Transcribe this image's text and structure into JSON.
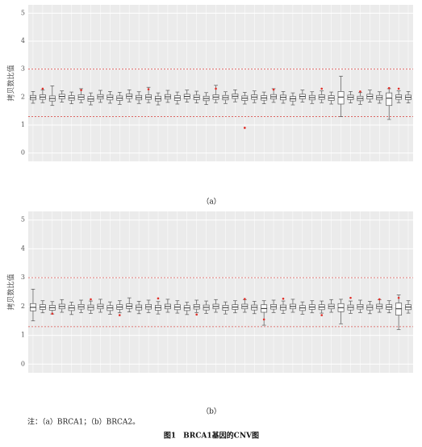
{
  "chart_data": [
    {
      "type": "box",
      "caption": "（a）",
      "ylabel": "拷贝数比值",
      "categories": [
        null,
        null,
        null,
        null,
        null,
        null,
        null,
        null,
        null,
        null,
        null,
        null,
        null,
        null,
        null,
        null,
        null,
        null,
        null,
        null,
        null,
        null,
        null,
        null,
        null,
        null,
        null,
        null,
        null,
        null,
        null,
        null,
        null,
        null,
        null,
        null,
        null,
        null,
        null,
        null
      ],
      "low": [
        1.78,
        1.8,
        1.7,
        1.82,
        1.76,
        1.8,
        1.72,
        1.81,
        1.78,
        1.74,
        1.83,
        1.77,
        1.8,
        1.72,
        1.81,
        1.75,
        1.82,
        1.79,
        1.73,
        1.8,
        1.77,
        1.83,
        1.75,
        1.8,
        1.76,
        1.81,
        1.78,
        1.72,
        1.82,
        1.77,
        1.8,
        1.75,
        1.3,
        1.79,
        1.74,
        1.82,
        1.78,
        1.2,
        1.8,
        1.79
      ],
      "q1": [
        1.9,
        1.92,
        1.86,
        1.94,
        1.89,
        1.91,
        1.85,
        1.93,
        1.9,
        1.88,
        1.95,
        1.9,
        1.92,
        1.86,
        1.93,
        1.88,
        1.94,
        1.91,
        1.87,
        1.92,
        1.9,
        1.95,
        1.88,
        1.92,
        1.89,
        1.93,
        1.9,
        1.86,
        1.94,
        1.9,
        1.92,
        1.88,
        1.75,
        1.91,
        1.87,
        1.93,
        1.9,
        1.7,
        1.92,
        1.91
      ],
      "median": [
        1.98,
        2.0,
        1.95,
        2.02,
        1.97,
        2.0,
        1.93,
        2.01,
        1.99,
        1.96,
        2.03,
        1.98,
        2.0,
        1.94,
        2.01,
        1.97,
        2.02,
        1.99,
        1.95,
        2.0,
        1.98,
        2.03,
        1.96,
        2.0,
        1.97,
        2.01,
        1.99,
        1.94,
        2.02,
        1.98,
        2.0,
        1.97,
        2.0,
        1.99,
        1.95,
        2.02,
        1.98,
        1.96,
        2.0,
        1.99
      ],
      "q3": [
        2.06,
        2.08,
        2.04,
        2.1,
        2.05,
        2.08,
        2.02,
        2.09,
        2.07,
        2.04,
        2.11,
        2.06,
        2.08,
        2.03,
        2.09,
        2.05,
        2.1,
        2.07,
        2.03,
        2.08,
        2.06,
        2.11,
        2.04,
        2.08,
        2.05,
        2.09,
        2.07,
        2.02,
        2.1,
        2.06,
        2.08,
        2.05,
        2.2,
        2.07,
        2.03,
        2.1,
        2.06,
        2.15,
        2.08,
        2.07
      ],
      "high": [
        2.2,
        2.25,
        2.4,
        2.22,
        2.18,
        2.3,
        2.15,
        2.24,
        2.2,
        2.17,
        2.26,
        2.19,
        2.35,
        2.15,
        2.24,
        2.18,
        2.25,
        2.21,
        2.16,
        2.42,
        2.19,
        2.26,
        2.17,
        2.22,
        2.18,
        2.3,
        2.2,
        2.15,
        2.25,
        2.19,
        2.22,
        2.18,
        2.75,
        2.2,
        2.16,
        2.25,
        2.19,
        2.3,
        2.22,
        2.2
      ],
      "outliers": {
        "x": [
          1,
          5,
          12,
          19,
          22,
          22,
          25,
          30,
          34,
          37,
          38
        ],
        "y": [
          2.3,
          2.25,
          2.28,
          2.3,
          0.9,
          0.9,
          2.27,
          2.3,
          2.2,
          2.32,
          2.3
        ]
      },
      "ref_lines": [
        3,
        1.3
      ],
      "ylim": [
        -0.3,
        5.3
      ],
      "yticks": [
        0,
        1,
        2,
        3,
        4,
        5
      ],
      "box_color": "#555555",
      "outlier_color": "#e0302a",
      "ref_color": "#d9534f",
      "panel_color": "#ebebeb"
    },
    {
      "type": "box",
      "caption": "（b）",
      "ylabel": "拷贝数比值",
      "categories": [
        null,
        null,
        null,
        null,
        null,
        null,
        null,
        null,
        null,
        null,
        null,
        null,
        null,
        null,
        null,
        null,
        null,
        null,
        null,
        null,
        null,
        null,
        null,
        null,
        null,
        null,
        null,
        null,
        null,
        null,
        null,
        null,
        null,
        null,
        null,
        null,
        null,
        null,
        null,
        null
      ],
      "low": [
        1.5,
        1.78,
        1.74,
        1.8,
        1.72,
        1.79,
        1.76,
        1.8,
        1.73,
        1.78,
        1.81,
        1.75,
        1.79,
        1.74,
        1.8,
        1.77,
        1.72,
        1.79,
        1.76,
        1.8,
        1.74,
        1.78,
        1.8,
        1.75,
        1.35,
        1.79,
        1.76,
        1.8,
        1.73,
        1.78,
        1.77,
        1.8,
        1.4,
        1.76,
        1.79,
        1.75,
        1.8,
        1.78,
        1.2,
        1.77
      ],
      "q1": [
        1.85,
        1.9,
        1.87,
        1.92,
        1.86,
        1.91,
        1.88,
        1.92,
        1.86,
        1.9,
        1.93,
        1.88,
        1.91,
        1.87,
        1.92,
        1.89,
        1.86,
        1.91,
        1.88,
        1.92,
        1.87,
        1.9,
        1.92,
        1.88,
        1.8,
        1.91,
        1.88,
        1.92,
        1.86,
        1.9,
        1.89,
        1.92,
        1.82,
        1.88,
        1.91,
        1.88,
        1.92,
        1.9,
        1.7,
        1.89
      ],
      "median": [
        1.97,
        1.98,
        1.96,
        2.0,
        1.95,
        1.99,
        1.97,
        2.0,
        1.95,
        1.98,
        2.01,
        1.97,
        1.99,
        1.96,
        2.0,
        1.98,
        1.95,
        1.99,
        1.97,
        2.0,
        1.96,
        1.98,
        2.0,
        1.97,
        1.93,
        1.99,
        1.97,
        2.0,
        1.95,
        1.98,
        1.98,
        2.0,
        1.96,
        1.97,
        1.99,
        1.97,
        2.0,
        1.98,
        1.92,
        1.98
      ],
      "q3": [
        2.1,
        2.06,
        2.04,
        2.08,
        2.03,
        2.07,
        2.05,
        2.08,
        2.03,
        2.06,
        2.09,
        2.05,
        2.07,
        2.04,
        2.08,
        2.06,
        2.03,
        2.07,
        2.05,
        2.08,
        2.04,
        2.06,
        2.08,
        2.05,
        2.06,
        2.07,
        2.05,
        2.08,
        2.03,
        2.06,
        2.06,
        2.08,
        2.1,
        2.05,
        2.07,
        2.05,
        2.08,
        2.06,
        2.12,
        2.06
      ],
      "high": [
        2.6,
        2.2,
        2.17,
        2.24,
        2.15,
        2.22,
        2.19,
        2.25,
        2.16,
        2.2,
        2.3,
        2.18,
        2.22,
        2.17,
        2.25,
        2.2,
        2.15,
        2.22,
        2.19,
        2.24,
        2.16,
        2.2,
        2.24,
        2.18,
        2.2,
        2.22,
        2.19,
        2.25,
        2.16,
        2.2,
        2.19,
        2.24,
        2.25,
        2.19,
        2.22,
        2.18,
        2.24,
        2.2,
        2.4,
        2.2
      ],
      "outliers": {
        "x": [
          2,
          6,
          9,
          13,
          17,
          22,
          24,
          26,
          30,
          33,
          36,
          38
        ],
        "y": [
          1.75,
          2.25,
          1.7,
          2.28,
          1.72,
          2.26,
          1.55,
          2.27,
          1.7,
          2.3,
          2.25,
          2.3
        ]
      },
      "ref_lines": [
        3,
        1.3
      ],
      "ylim": [
        -0.3,
        5.3
      ],
      "yticks": [
        0,
        1,
        2,
        3,
        4,
        5
      ],
      "box_color": "#555555",
      "outlier_color": "#e0302a",
      "ref_color": "#d9534f",
      "panel_color": "#ebebeb"
    }
  ],
  "note": "注：（a）BRCA1；（b）BRCA2。",
  "figure_title": "图1　BRCA1基因的CNV图"
}
